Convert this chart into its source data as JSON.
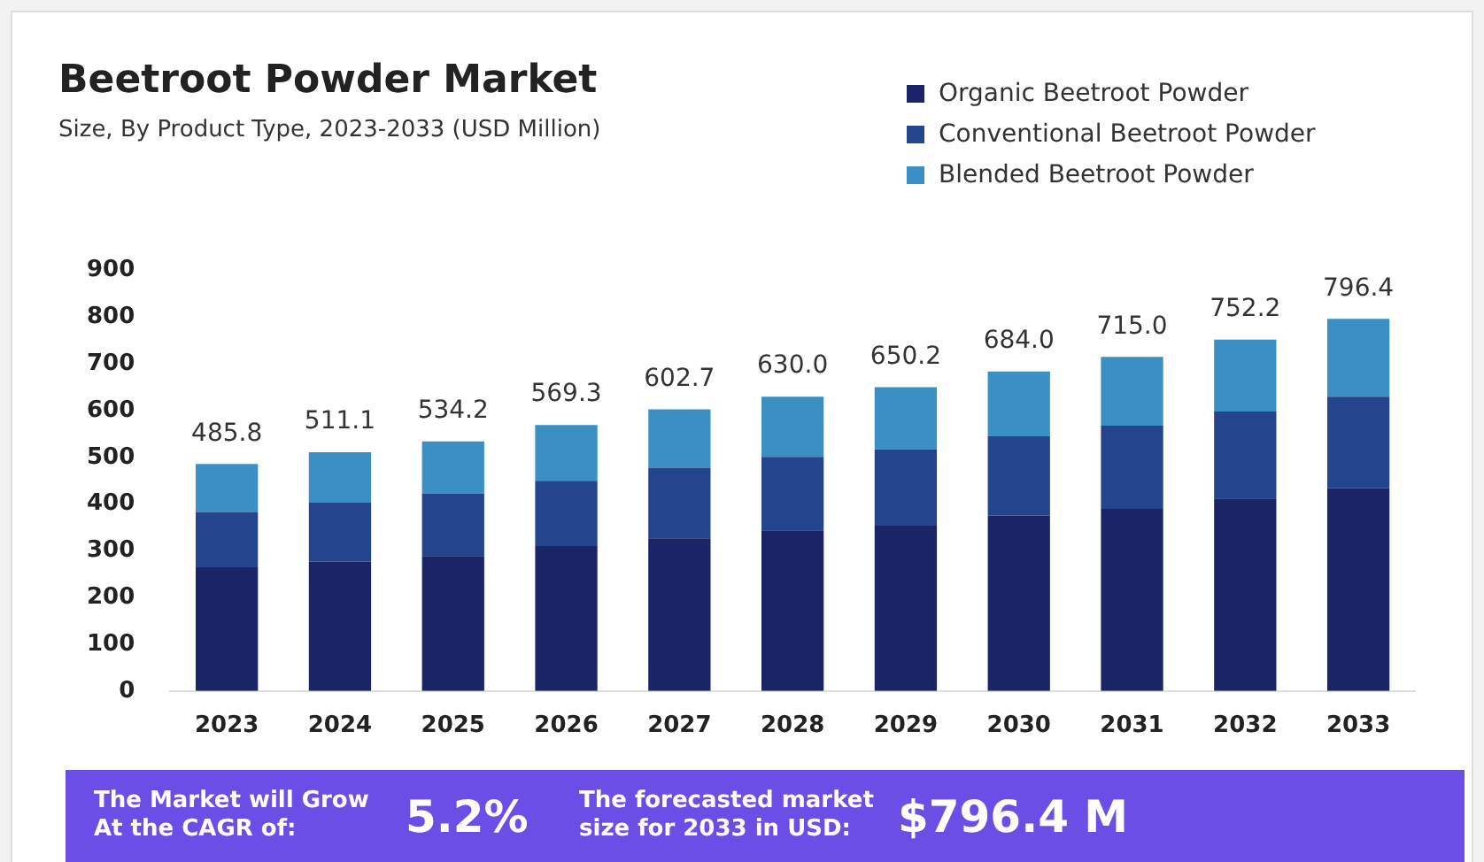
{
  "chart_data": {
    "type": "bar",
    "stacked": true,
    "title": "Beetroot Powder Market",
    "subtitle": "Size, By Product Type, 2023-2033 (USD Million)",
    "categories": [
      "2023",
      "2024",
      "2025",
      "2026",
      "2027",
      "2028",
      "2029",
      "2030",
      "2031",
      "2032",
      "2033"
    ],
    "series": [
      {
        "name": "Organic Beetroot Powder",
        "color": "#1a2466",
        "values": [
          265,
          277,
          289,
          310,
          327,
          344,
          354,
          375,
          390,
          412,
          434
        ]
      },
      {
        "name": "Conventional Beetroot Powder",
        "color": "#24448e",
        "values": [
          118,
          126,
          134,
          140,
          151,
          157,
          163,
          170,
          178,
          186,
          196
        ]
      },
      {
        "name": "Blended Beetroot Powder",
        "color": "#3a8fc4",
        "values": [
          102.8,
          108.1,
          111.2,
          119.3,
          124.7,
          129,
          133.2,
          139,
          147,
          154.2,
          166.4
        ]
      }
    ],
    "totals": [
      "485.8",
      "511.1",
      "534.2",
      "569.3",
      "602.7",
      "630.0",
      "650.2",
      "684.0",
      "715.0",
      "752.2",
      "796.4"
    ],
    "ylim": [
      0,
      900
    ],
    "yticks": [
      0,
      100,
      200,
      300,
      400,
      500,
      600,
      700,
      800,
      900
    ],
    "grid": false,
    "legend": "top right",
    "annotations": [
      "The Market will Grow At the CAGR of:",
      "5.2%",
      "The forecasted market size for 2033 in USD:",
      "$796.4 M"
    ]
  }
}
